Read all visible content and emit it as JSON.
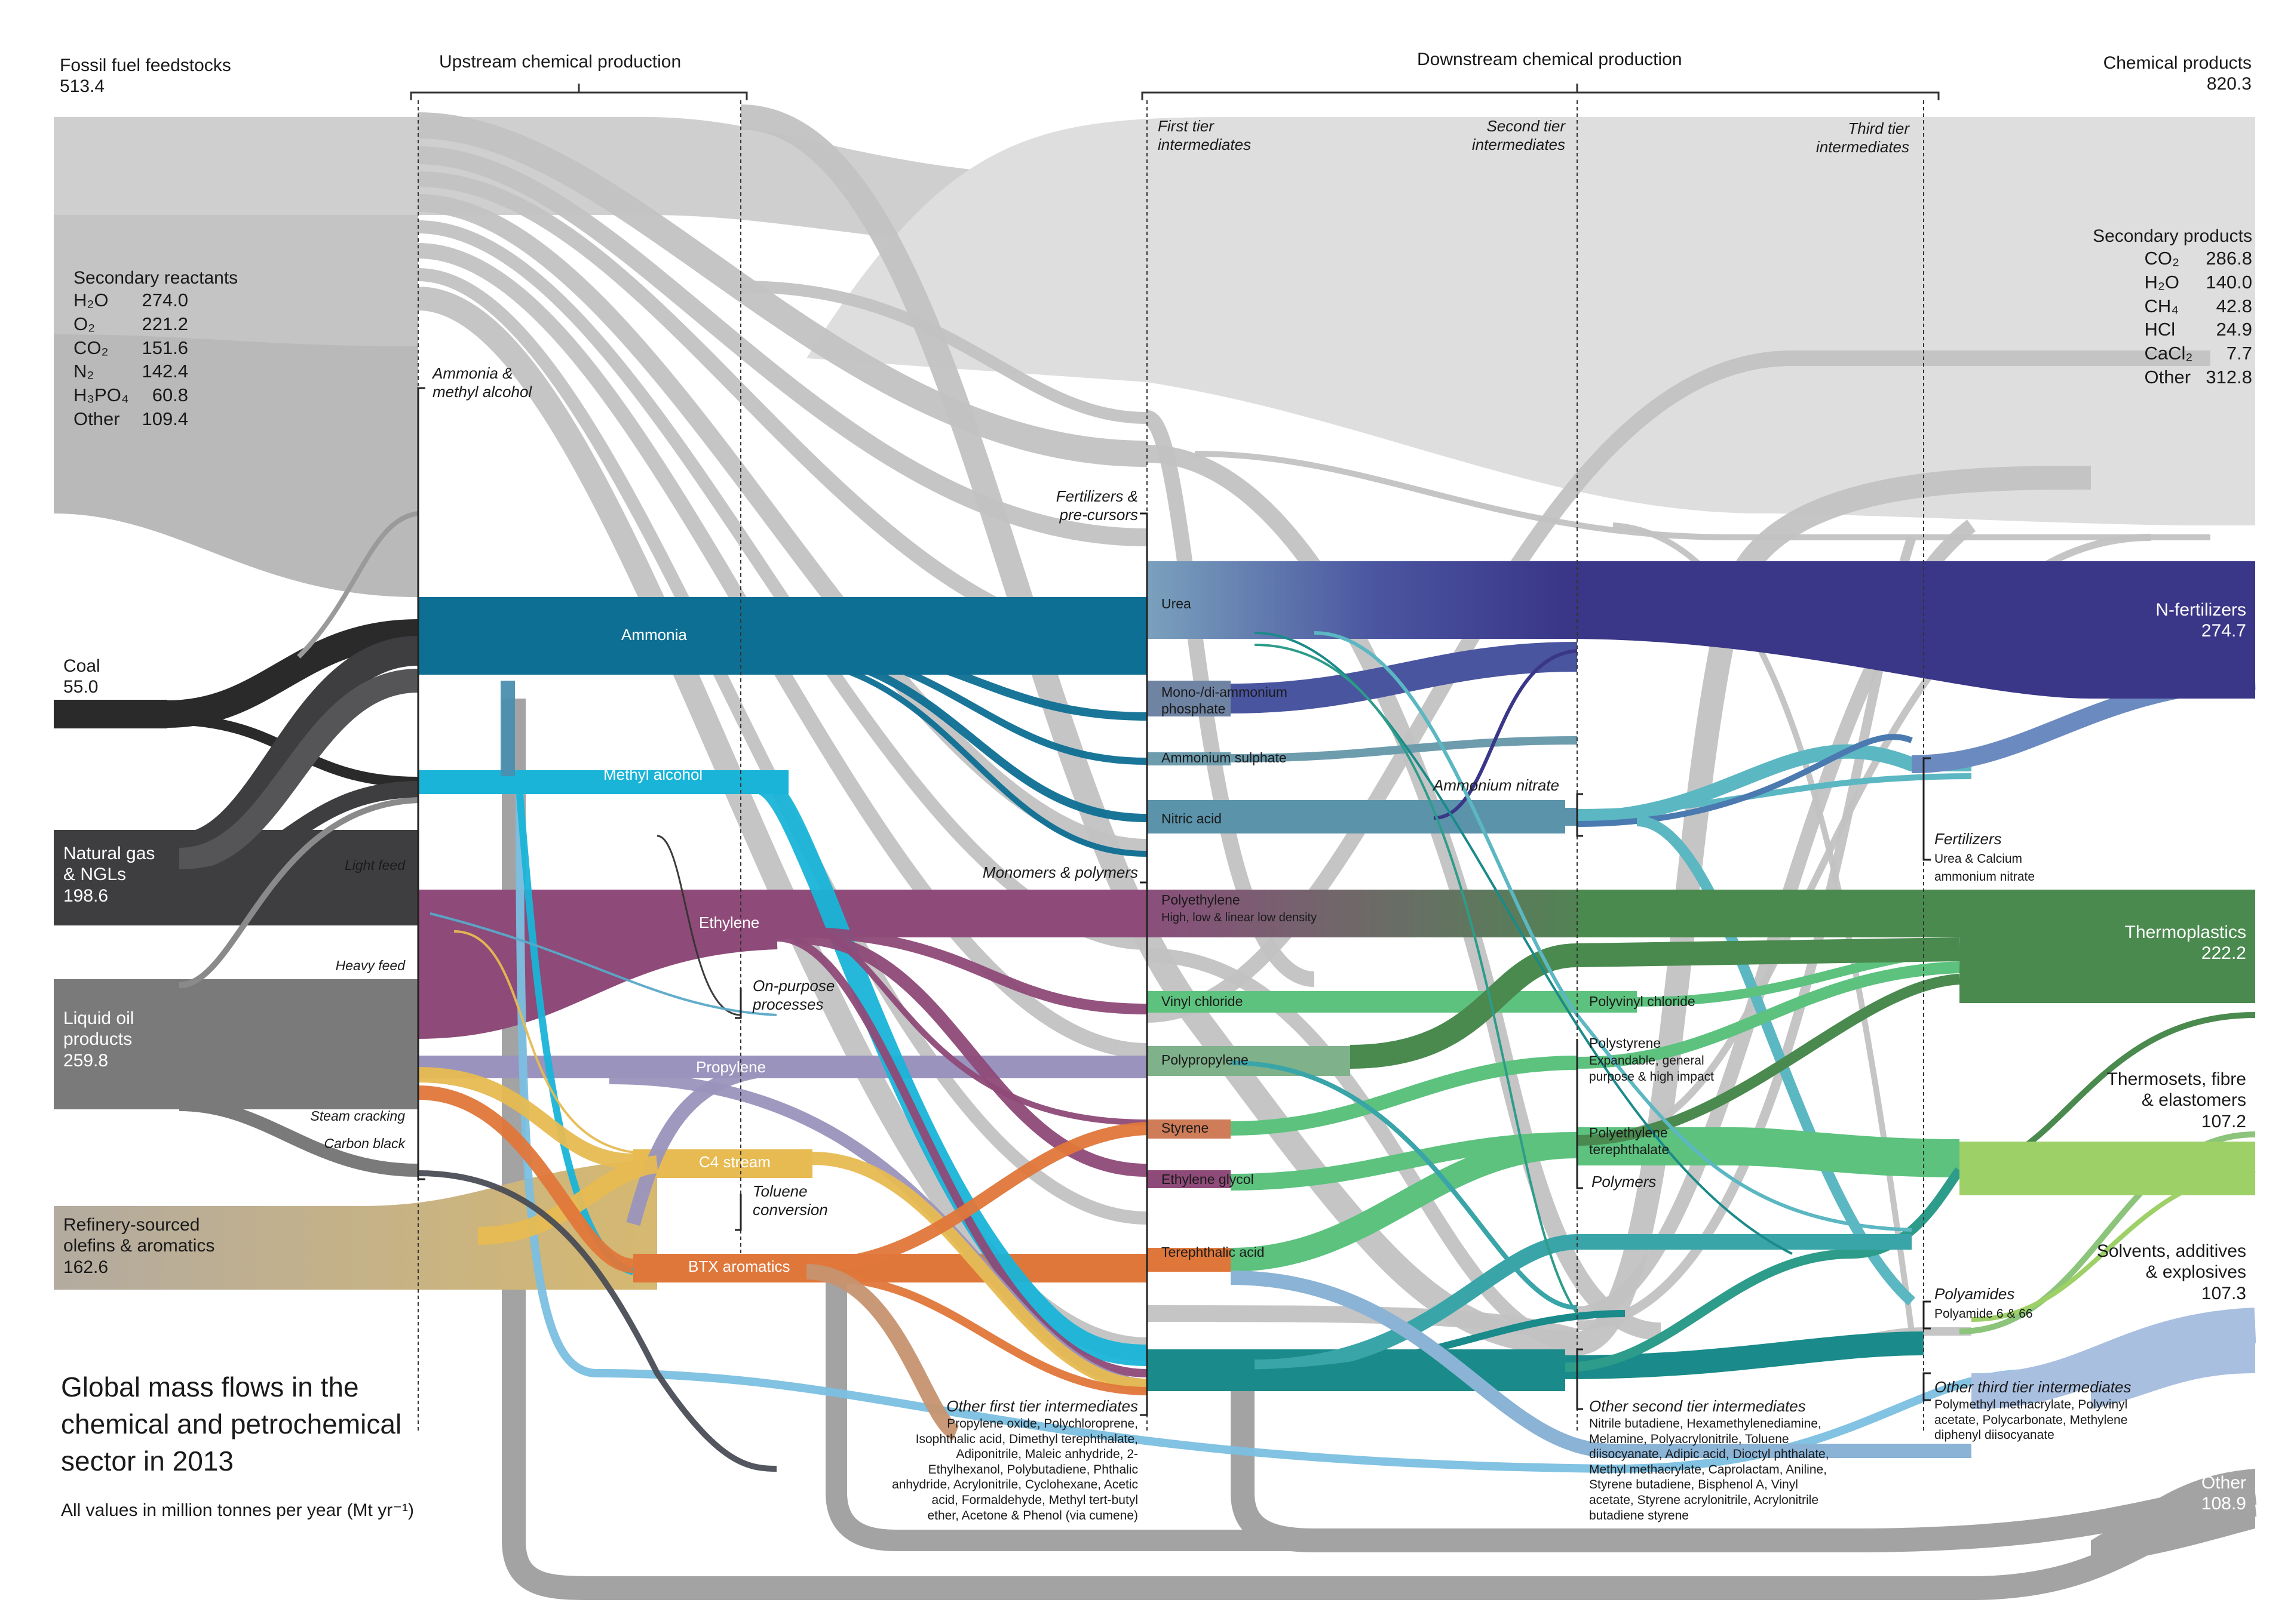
{
  "headers": {
    "fossil": "Fossil fuel feedstocks",
    "fossil_total": "513.4",
    "upstream": "Upstream chemical production",
    "downstream": "Downstream chemical production",
    "products": "Chemical products",
    "products_total": "820.3",
    "first_tier": "First tier\nintermediates",
    "second_tier": "Second tier\nintermediates",
    "third_tier": "Third tier\nintermediates"
  },
  "secondary_reactants": {
    "title": "Secondary reactants",
    "items": [
      {
        "name": "H₂O",
        "value": "274.0"
      },
      {
        "name": "O₂",
        "value": "221.2"
      },
      {
        "name": "CO₂",
        "value": "151.6"
      },
      {
        "name": "N₂",
        "value": "142.4"
      },
      {
        "name": "H₃PO₄",
        "value": "60.8"
      },
      {
        "name": "Other",
        "value": "109.4"
      }
    ]
  },
  "secondary_products": {
    "title": "Secondary products",
    "items": [
      {
        "name": "CO₂",
        "value": "286.8"
      },
      {
        "name": "H₂O",
        "value": "140.0"
      },
      {
        "name": "CH₄",
        "value": "42.8"
      },
      {
        "name": "HCl",
        "value": "24.9"
      },
      {
        "name": "CaCl₂",
        "value": "7.7"
      },
      {
        "name": "Other",
        "value": "312.8"
      }
    ]
  },
  "sources": {
    "coal": "Coal",
    "coal_v": "55.0",
    "gas": "Natural gas\n& NGLs",
    "gas_v": "198.6",
    "oil": "Liquid oil\nproducts",
    "oil_v": "259.8",
    "refinery": "Refinery-sourced\nolefins & aromatics",
    "refinery_v": "162.6"
  },
  "upstream_labels": {
    "ammonia_methanol": "Ammonia &\nmethyl alcohol",
    "ammonia": "Ammonia",
    "methanol": "Methyl alcohol",
    "light_feed": "Light feed",
    "heavy_feed": "Heavy feed",
    "steam_cracking": "Steam cracking",
    "carbon_black": "Carbon black",
    "ethylene": "Ethylene",
    "propylene": "Propylene",
    "c4": "C4 stream",
    "btx": "BTX aromatics",
    "on_purpose": "On-purpose\nprocesses",
    "toluene": "Toluene\nconversion"
  },
  "first_tier": {
    "fertilizers_pre": "Fertilizers &\npre-cursors",
    "monomers": "Monomers & polymers",
    "urea": "Urea",
    "map_dap": "Mono-/di-ammonium\nphosphate",
    "amm_sulphate": "Ammonium sulphate",
    "nitric": "Nitric acid",
    "polyethylene": "Polyethylene",
    "polyethylene_sub": "High, low & linear low density",
    "vinyl_chloride": "Vinyl chloride",
    "polypropylene": "Polypropylene",
    "styrene": "Styrene",
    "ethylene_glycol": "Ethylene glycol",
    "terephthalic": "Terephthalic acid",
    "other_first": "Other first tier intermediates",
    "other_first_list": "Propylene oxide, Polychloroprene,\nIsophthalic acid, Dimethyl terephthalate,\nAdiponitrile, Maleic anhydride, 2-\nEthylhexanol, Polybutadiene, Phthalic\nanhydride, Acrylonitrile, Cyclohexane, Acetic\nacid, Formaldehyde, Methyl tert-butyl\nether, Acetone & Phenol (via cumene)"
  },
  "second_tier": {
    "ammonium_nitrate": "Ammonium nitrate",
    "pvc": "Polyvinyl chloride",
    "polystyrene": "Polystyrene",
    "polystyrene_sub": "Expandable, general\npurpose & high impact",
    "pet": "Polyethylene\nterephthalate",
    "polymers": "Polymers",
    "other_second": "Other second tier intermediates",
    "other_second_list": "Nitrile butadiene, Hexamethylenediamine,\nMelamine, Polyacrylonitrile, Toluene\ndiisocyanate, Adipic acid, Dioctyl phthalate,\nMethyl methacrylate, Caprolactam, Aniline,\nStyrene butadiene, Bisphenol A, Vinyl\nacetate, Styrene acrylonitrile, Acrylonitrile\nbutadiene styrene"
  },
  "third_tier": {
    "fertilizers": "Fertilizers",
    "fertilizers_sub": "Urea & Calcium\nammonium nitrate",
    "polyamides": "Polyamides",
    "polyamides_sub": "Polyamide 6 & 66",
    "other_third": "Other third tier intermediates",
    "other_third_list": "Polymethyl methacrylate, Polyvinyl\nacetate, Polycarbonate, Methylene\ndiphenyl diisocyanate"
  },
  "products": {
    "nfert": "N-fertilizers",
    "nfert_v": "274.7",
    "thermoplastics": "Thermoplastics",
    "thermoplastics_v": "222.2",
    "thermosets": "Thermosets, fibre\n& elastomers",
    "thermosets_v": "107.2",
    "solvents": "Solvents, additives\n& explosives",
    "solvents_v": "107.3",
    "other": "Other",
    "other_v": "108.9"
  },
  "caption": {
    "title": "Global mass flows in the\nchemical and petrochemical\nsector in 2013",
    "units": "All values in million tonnes per year (Mt yr⁻¹)"
  },
  "colors": {
    "gray_flow": "#c4c4c4",
    "light_gray_flow": "#dddddd",
    "coal": "#2a2a2a",
    "gas": "#3e3e40",
    "oil": "#7a7a7a",
    "ammonia": "#0e6f94",
    "methanol": "#19b4d8",
    "ethylene": "#8e4a78",
    "propylene": "#9a93bd",
    "c4": "#e7bb52",
    "btx": "#e0773a",
    "nfert": "#3a3688",
    "thermoplastics": "#4a8a4f",
    "thermosets": "#9dd067",
    "solvents": "#a9bfe0",
    "other": "#a3a3a3",
    "teal": "#1a8a8a",
    "green_mid": "#5cc27e"
  }
}
